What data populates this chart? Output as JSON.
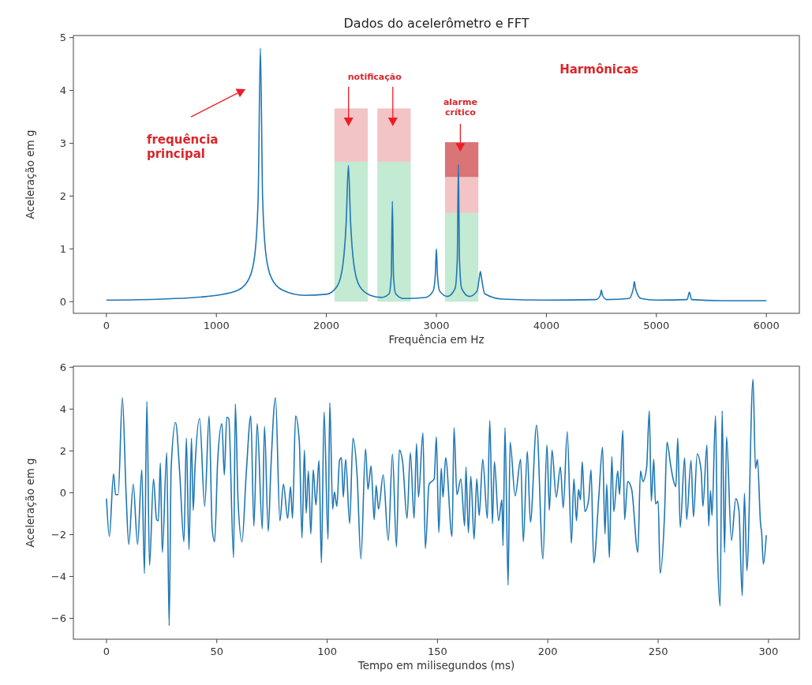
{
  "chart_data": [
    {
      "type": "line",
      "title": "Dados do acelerômetro e FFT",
      "xlabel": "Frequência em Hz",
      "ylabel": "Aceleração em g",
      "xlim": [
        -300,
        6300
      ],
      "ylim": [
        -0.22,
        5.04
      ],
      "xticks": [
        0,
        1000,
        2000,
        3000,
        4000,
        5000,
        6000
      ],
      "yticks": [
        0,
        1,
        2,
        3,
        4,
        5
      ],
      "stacked": true,
      "series": [
        {
          "type": "bar",
          "color": "#c3ead2",
          "x": [
            2225,
            2615,
            3230
          ],
          "values": [
            2.65,
            2.65,
            1.68
          ]
        },
        {
          "type": "bar",
          "color": "#f2c4c6",
          "x": [
            2225,
            2615,
            3230
          ],
          "values": [
            1.01,
            1.01,
            0.68
          ]
        },
        {
          "type": "bar",
          "color": "#d97477",
          "x": [
            2225,
            2615,
            3230
          ],
          "values": [
            0,
            0,
            0.66
          ]
        },
        {
          "color": "#1f77b4",
          "x": [
            0,
            500,
            800,
            1000,
            1200,
            1300,
            1350,
            1380,
            1400,
            1420,
            1450,
            1500,
            1600,
            1800,
            2000,
            2100,
            2150,
            2180,
            2200,
            2220,
            2250,
            2300,
            2400,
            2500,
            2570,
            2590,
            2600,
            2610,
            2630,
            2700,
            2900,
            2970,
            2990,
            3000,
            3010,
            3030,
            3100,
            3170,
            3190,
            3200,
            3210,
            3230,
            3300,
            3370,
            3390,
            3400,
            3410,
            3440,
            3600,
            4000,
            4450,
            4490,
            4500,
            4510,
            4550,
            4750,
            4790,
            4800,
            4810,
            4860,
            5000,
            5280,
            5300,
            5320,
            5600,
            6000
          ],
          "values": [
            0.03,
            0.05,
            0.08,
            0.12,
            0.22,
            0.45,
            0.9,
            2.0,
            4.8,
            2.0,
            0.9,
            0.45,
            0.22,
            0.12,
            0.14,
            0.3,
            0.7,
            1.5,
            2.58,
            1.5,
            0.7,
            0.3,
            0.12,
            0.08,
            0.15,
            0.5,
            1.9,
            0.5,
            0.15,
            0.06,
            0.08,
            0.2,
            0.5,
            1.0,
            0.5,
            0.2,
            0.1,
            0.25,
            0.8,
            2.6,
            0.8,
            0.25,
            0.1,
            0.2,
            0.45,
            0.57,
            0.45,
            0.15,
            0.05,
            0.03,
            0.04,
            0.12,
            0.22,
            0.12,
            0.04,
            0.06,
            0.25,
            0.38,
            0.25,
            0.06,
            0.03,
            0.04,
            0.18,
            0.04,
            0.02,
            0.02
          ]
        }
      ],
      "annotations": [
        "frequência\nprincipal",
        "notificação",
        "alarme\ncrítico",
        "Harmônicas"
      ]
    },
    {
      "type": "line",
      "xlabel": "Tempo em milisegundos (ms)",
      "ylabel": "Aceleração em g",
      "xlim": [
        -15,
        314
      ],
      "ylim": [
        -7,
        6.05
      ],
      "xticks": [
        0,
        50,
        100,
        150,
        200,
        250,
        300
      ],
      "yticks": [
        -6,
        -4,
        -2,
        0,
        2,
        4,
        6
      ],
      "series": [
        {
          "color": "#1f77b4",
          "x": [
            0,
            1.3,
            3.2,
            4.1,
            5.3,
            7.2,
            8.9,
            10.1,
            12.1,
            14.1,
            16.0,
            17.2,
            18.3,
            19.5,
            21.3,
            22.7,
            23.5,
            24.4,
            25.3,
            27.3,
            28.4,
            29.3,
            31.3,
            33.2,
            35.1,
            36.2,
            37.4,
            38.5,
            39.3,
            40.1,
            42.2,
            44.5,
            46.5,
            47.9,
            49.0,
            50.4,
            52.3,
            53.4,
            54.5,
            55.4,
            57.6,
            58.4,
            59.6,
            61.4,
            63.4,
            65.4,
            66.8,
            68.3,
            70.6,
            71.6,
            73.3,
            74.5,
            76.6,
            78.6,
            80.2,
            82.1,
            83.4,
            84.3,
            85.7,
            87.4,
            88.6,
            89.7,
            90.5,
            91.5,
            92.6,
            93.7,
            94.9,
            96.3,
            97.4,
            98.6,
            100.4,
            101.2,
            102.5,
            103.3,
            104.4,
            105.6,
            106.5,
            107.3,
            108.4,
            110.2,
            111.7,
            113.6,
            115.3,
            117.4,
            118.5,
            119.9,
            121.3,
            122.2,
            123.3,
            125.4,
            127.7,
            129.6,
            131.4,
            132.7,
            134.2,
            136.2,
            137.7,
            139.4,
            140.5,
            141.4,
            143.4,
            144.5,
            146.2,
            148.5,
            149.5,
            150.6,
            151.7,
            152.5,
            153.7,
            156.6,
            157.5,
            158.8,
            160.6,
            162.3,
            162.9,
            164.0,
            165.1,
            166.6,
            167.8,
            168.9,
            170.5,
            172.6,
            173.7,
            174.9,
            175.8,
            177.7,
            179.2,
            179.7,
            180.6,
            182.0,
            182.9,
            185.2,
            187.7,
            188.9,
            190.7,
            192.1,
            194.9,
            197.8,
            199.6,
            200.7,
            201.9,
            203.8,
            205.7,
            207.0,
            208.8,
            210.7,
            211.8,
            213.0,
            213.9,
            214.8,
            215.6,
            216.8,
            218.5,
            219.6,
            220.8,
            223.1,
            224.8,
            225.9,
            226.7,
            227.9,
            229.0,
            229.9,
            231.7,
            232.5,
            234.0,
            234.8,
            236.2,
            238.0,
            240.8,
            242.0,
            243.1,
            244.8,
            246.0,
            246.9,
            248.0,
            248.8,
            250.0,
            250.9,
            252.9,
            254.0,
            255.7,
            256.9,
            258.0,
            258.9,
            260.0,
            262.0,
            262.9,
            264.9,
            266.0,
            267.7,
            269.5,
            270.3,
            272.1,
            272.9,
            273.7,
            274.4,
            276.0,
            276.9,
            278.1,
            279.0,
            280.1,
            281.0,
            283.2,
            285.2,
            286.6,
            288.1,
            289.1,
            290.2,
            293.0,
            294.1,
            295.0,
            296.4,
            296.9,
            297.7,
            299
          ],
          "values": [
            -0.28,
            -2.09,
            0.91,
            -0.09,
            -0.09,
            4.55,
            -0.09,
            -2.47,
            0.41,
            -2.47,
            1.1,
            -3.85,
            4.36,
            -3.47,
            0.66,
            -1.28,
            -1.34,
            1.42,
            -2.85,
            1.92,
            -6.35,
            1.17,
            3.36,
            0.91,
            -2.34,
            2.61,
            -2.72,
            2.61,
            -0.84,
            1.17,
            3.55,
            -0.65,
            3.67,
            -1.72,
            -2.34,
            1.54,
            3.3,
            0.85,
            3.61,
            3.55,
            -3.1,
            4.24,
            -0.34,
            -2.34,
            1.04,
            3.67,
            -1.59,
            3.3,
            -1.72,
            3.17,
            -1.84,
            1.17,
            4.55,
            -1.34,
            0.41,
            -1.22,
            0.29,
            -1.22,
            3.67,
            2.42,
            -2.16,
            2.04,
            -0.97,
            1.04,
            -1.97,
            1.1,
            -0.59,
            1.54,
            -3.35,
            3.86,
            -2.22,
            4.3,
            -0.78,
            0.04,
            -0.65,
            1.54,
            1.67,
            -0.21,
            1.6,
            -1.47,
            2.61,
            0.79,
            -3.16,
            2.1,
            0.16,
            1.29,
            -1.28,
            0.35,
            -0.78,
            0.85,
            -2.28,
            1.85,
            -2.59,
            2.04,
            1.48,
            -1.22,
            1.92,
            -1.22,
            2.35,
            -0.21,
            2.86,
            -2.66,
            0.41,
            0.66,
            2.67,
            -1.9,
            1.17,
            -0.21,
            1.67,
            -2.09,
            3.11,
            -0.09,
            0.66,
            -1.59,
            1.23,
            -1.91,
            0.79,
            -2.22,
            0.66,
            -1.09,
            1.6,
            -1.22,
            3.45,
            -1.47,
            1.48,
            -1.34,
            -0.34,
            -2.53,
            3.11,
            -4.41,
            2.42,
            -0.15,
            1.6,
            -2.34,
            1.98,
            -1.4,
            3.23,
            -3.16,
            2.29,
            -0.84,
            2.04,
            -0.21,
            1.23,
            -0.72,
            2.92,
            -2.41,
            0.66,
            -1.34,
            0.16,
            -0.34,
            1.48,
            -0.9,
            -0.34,
            1.1,
            -3.35,
            -0.21,
            2.17,
            -1.97,
            0.41,
            -3.1,
            1.73,
            -0.9,
            1.04,
            -0.09,
            2.98,
            -1.28,
            0.54,
            0.16,
            -2.85,
            1.04,
            0.54,
            1.23,
            3.92,
            -0.4,
            1.6,
            -0.53,
            -0.4,
            -3.85,
            -1.03,
            2.42,
            1.29,
            0.6,
            0.29,
            2.61,
            -1.66,
            1.67,
            -1.28,
            1.54,
            -1.15,
            1.85,
            1.04,
            -0.65,
            2.29,
            -1.59,
            0.1,
            -1.09,
            3.67,
            -2.78,
            -5.41,
            3.92,
            -2.85,
            2.67,
            -2.28,
            -0.28,
            -0.84,
            -4.91,
            -0.03,
            -3.72,
            5.43,
            1.16,
            1.6,
            -1.47,
            -1.91,
            -3.41,
            -2.03
          ]
        }
      ]
    }
  ]
}
